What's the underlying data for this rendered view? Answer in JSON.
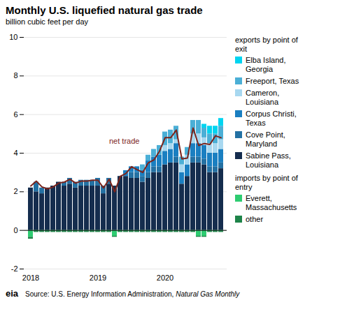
{
  "chart_data": {
    "type": "bar",
    "title": "Monthly U.S. liquefied natural gas trade",
    "subtitle": "billion cubic feet per day",
    "stacked": true,
    "grid": true,
    "categories": [
      "2018",
      null,
      null,
      null,
      null,
      null,
      null,
      null,
      null,
      null,
      null,
      null,
      "2019",
      null,
      null,
      null,
      null,
      null,
      null,
      null,
      null,
      null,
      null,
      null,
      "2020",
      null,
      null,
      null,
      null,
      null,
      null,
      null,
      null,
      null,
      null
    ],
    "ylim": [
      -2,
      10
    ],
    "yticks": [
      -2,
      0,
      2,
      4,
      6,
      8,
      10
    ],
    "series": [
      {
        "name": "Sabine Pass,\nLouisiana",
        "color": "#152d4e",
        "values": [
          2.2,
          2.0,
          1.9,
          2.2,
          2.3,
          2.5,
          2.3,
          2.4,
          2.2,
          2.3,
          2.3,
          2.3,
          2.3,
          1.9,
          2.4,
          2.3,
          2.8,
          2.8,
          2.7,
          2.7,
          2.5,
          2.7,
          3.0,
          3.0,
          3.4,
          3.5,
          3.5,
          2.4,
          2.8,
          3.5,
          3.5,
          3.4,
          3.0,
          3.0,
          3.2
        ]
      },
      {
        "name": "Cove Point,\nMaryland",
        "color": "#2471a3",
        "values": [
          0.0,
          0.5,
          0.3,
          0.0,
          0.0,
          0.0,
          0.2,
          0.3,
          0.3,
          0.3,
          0.3,
          0.3,
          0.4,
          0.4,
          0.3,
          0.0,
          0.0,
          0.0,
          0.3,
          0.3,
          0.3,
          0.3,
          0.3,
          0.3,
          0.0,
          0.0,
          0.3,
          0.0,
          0.0,
          0.3,
          0.3,
          0.3,
          0.3,
          0.3,
          0.3
        ]
      },
      {
        "name": "Corpus Christi,\nTexas",
        "color": "#1a7fc1",
        "values": [
          0.0,
          0.0,
          0.0,
          0.0,
          0.0,
          0.0,
          0.0,
          0.0,
          0.0,
          0.0,
          0.0,
          0.0,
          0.0,
          0.0,
          0.0,
          0.0,
          0.0,
          0.3,
          0.3,
          0.3,
          0.3,
          0.6,
          0.5,
          0.6,
          0.7,
          0.7,
          0.7,
          0.6,
          0.6,
          0.7,
          0.7,
          0.7,
          0.7,
          0.7,
          0.7
        ]
      },
      {
        "name": "Cameron,\nLouisiana",
        "color": "#a8d8f0",
        "values": [
          0.0,
          0.0,
          0.0,
          0.0,
          0.0,
          0.0,
          0.0,
          0.0,
          0.0,
          0.0,
          0.0,
          0.0,
          0.0,
          0.0,
          0.0,
          0.0,
          0.0,
          0.0,
          0.0,
          0.0,
          0.0,
          0.0,
          0.0,
          0.0,
          0.3,
          0.3,
          0.2,
          0.4,
          0.5,
          0.5,
          0.5,
          0.4,
          0.5,
          0.5,
          0.5
        ]
      },
      {
        "name": "Freeport, Texas",
        "color": "#4bafd6",
        "values": [
          0.0,
          0.0,
          0.0,
          0.0,
          0.0,
          0.0,
          0.0,
          0.0,
          0.0,
          0.0,
          0.0,
          0.0,
          0.0,
          0.0,
          0.0,
          0.0,
          0.0,
          0.0,
          0.0,
          0.0,
          0.3,
          0.3,
          0.4,
          0.5,
          0.7,
          0.7,
          0.7,
          0.4,
          0.4,
          0.7,
          0.7,
          0.5,
          0.5,
          0.5,
          0.7
        ]
      },
      {
        "name": "Elba Island,\nGeorgia",
        "color": "#00d4f0",
        "values": [
          0.0,
          0.0,
          0.0,
          0.0,
          0.0,
          0.0,
          0.0,
          0.0,
          0.0,
          0.0,
          0.0,
          0.0,
          0.0,
          0.0,
          0.0,
          0.0,
          0.0,
          0.0,
          0.0,
          0.0,
          0.0,
          0.0,
          0.0,
          0.0,
          0.0,
          0.0,
          0.0,
          0.0,
          0.0,
          0.0,
          0.0,
          0.2,
          0.4,
          0.4,
          0.4
        ]
      },
      {
        "name": "Everett,\nMassachusetts",
        "color": "#2ecc71",
        "values": [
          -0.35,
          -0.05,
          -0.05,
          -0.05,
          -0.05,
          -0.05,
          -0.05,
          -0.05,
          -0.05,
          -0.05,
          -0.05,
          -0.05,
          -0.05,
          -0.05,
          -0.05,
          -0.3,
          -0.05,
          -0.05,
          -0.05,
          -0.05,
          -0.05,
          -0.05,
          -0.05,
          -0.05,
          -0.05,
          -0.05,
          -0.05,
          -0.05,
          -0.05,
          -0.05,
          -0.3,
          -0.3,
          -0.05,
          -0.05,
          -0.05
        ]
      },
      {
        "name": "other",
        "color": "#1e8449",
        "values": [
          -0.1,
          -0.05,
          -0.05,
          -0.05,
          -0.05,
          -0.05,
          -0.05,
          -0.05,
          -0.05,
          -0.05,
          -0.05,
          -0.05,
          -0.05,
          -0.05,
          -0.05,
          -0.05,
          -0.05,
          -0.05,
          -0.05,
          -0.05,
          -0.05,
          -0.05,
          -0.05,
          -0.05,
          -0.05,
          -0.05,
          -0.05,
          -0.05,
          -0.05,
          -0.05,
          -0.05,
          -0.05,
          -0.05,
          -0.05,
          -0.05
        ]
      },
      {
        "name": "net trade",
        "type": "line",
        "color": "#7b241c",
        "values": [
          2.3,
          2.55,
          2.25,
          2.15,
          2.25,
          2.45,
          2.5,
          2.65,
          2.45,
          2.55,
          2.55,
          2.6,
          2.6,
          2.2,
          2.65,
          2.0,
          2.8,
          2.95,
          3.3,
          3.15,
          3.0,
          3.5,
          3.65,
          4.1,
          4.8,
          4.8,
          5.2,
          3.7,
          3.75,
          5.3,
          4.4,
          4.5,
          4.45,
          4.9,
          4.8
        ]
      }
    ],
    "annotations": [
      {
        "text": "net trade",
        "x": 14,
        "y": 4.6
      }
    ],
    "legend_groups": [
      {
        "title": "exports by point of\nexit",
        "series": [
          "Elba Island,\nGeorgia",
          "Freeport, Texas",
          "Cameron,\nLouisiana",
          "Corpus Christi,\nTexas",
          "Cove Point,\nMaryland",
          "Sabine Pass,\nLouisiana"
        ]
      },
      {
        "title": "imports by point of\nentry",
        "series": [
          "Everett,\nMassachusetts",
          "other"
        ]
      }
    ],
    "logo": "eia",
    "source": "Source: U.S. Energy Information Administration, ",
    "source_title": "Natural Gas Monthly"
  }
}
